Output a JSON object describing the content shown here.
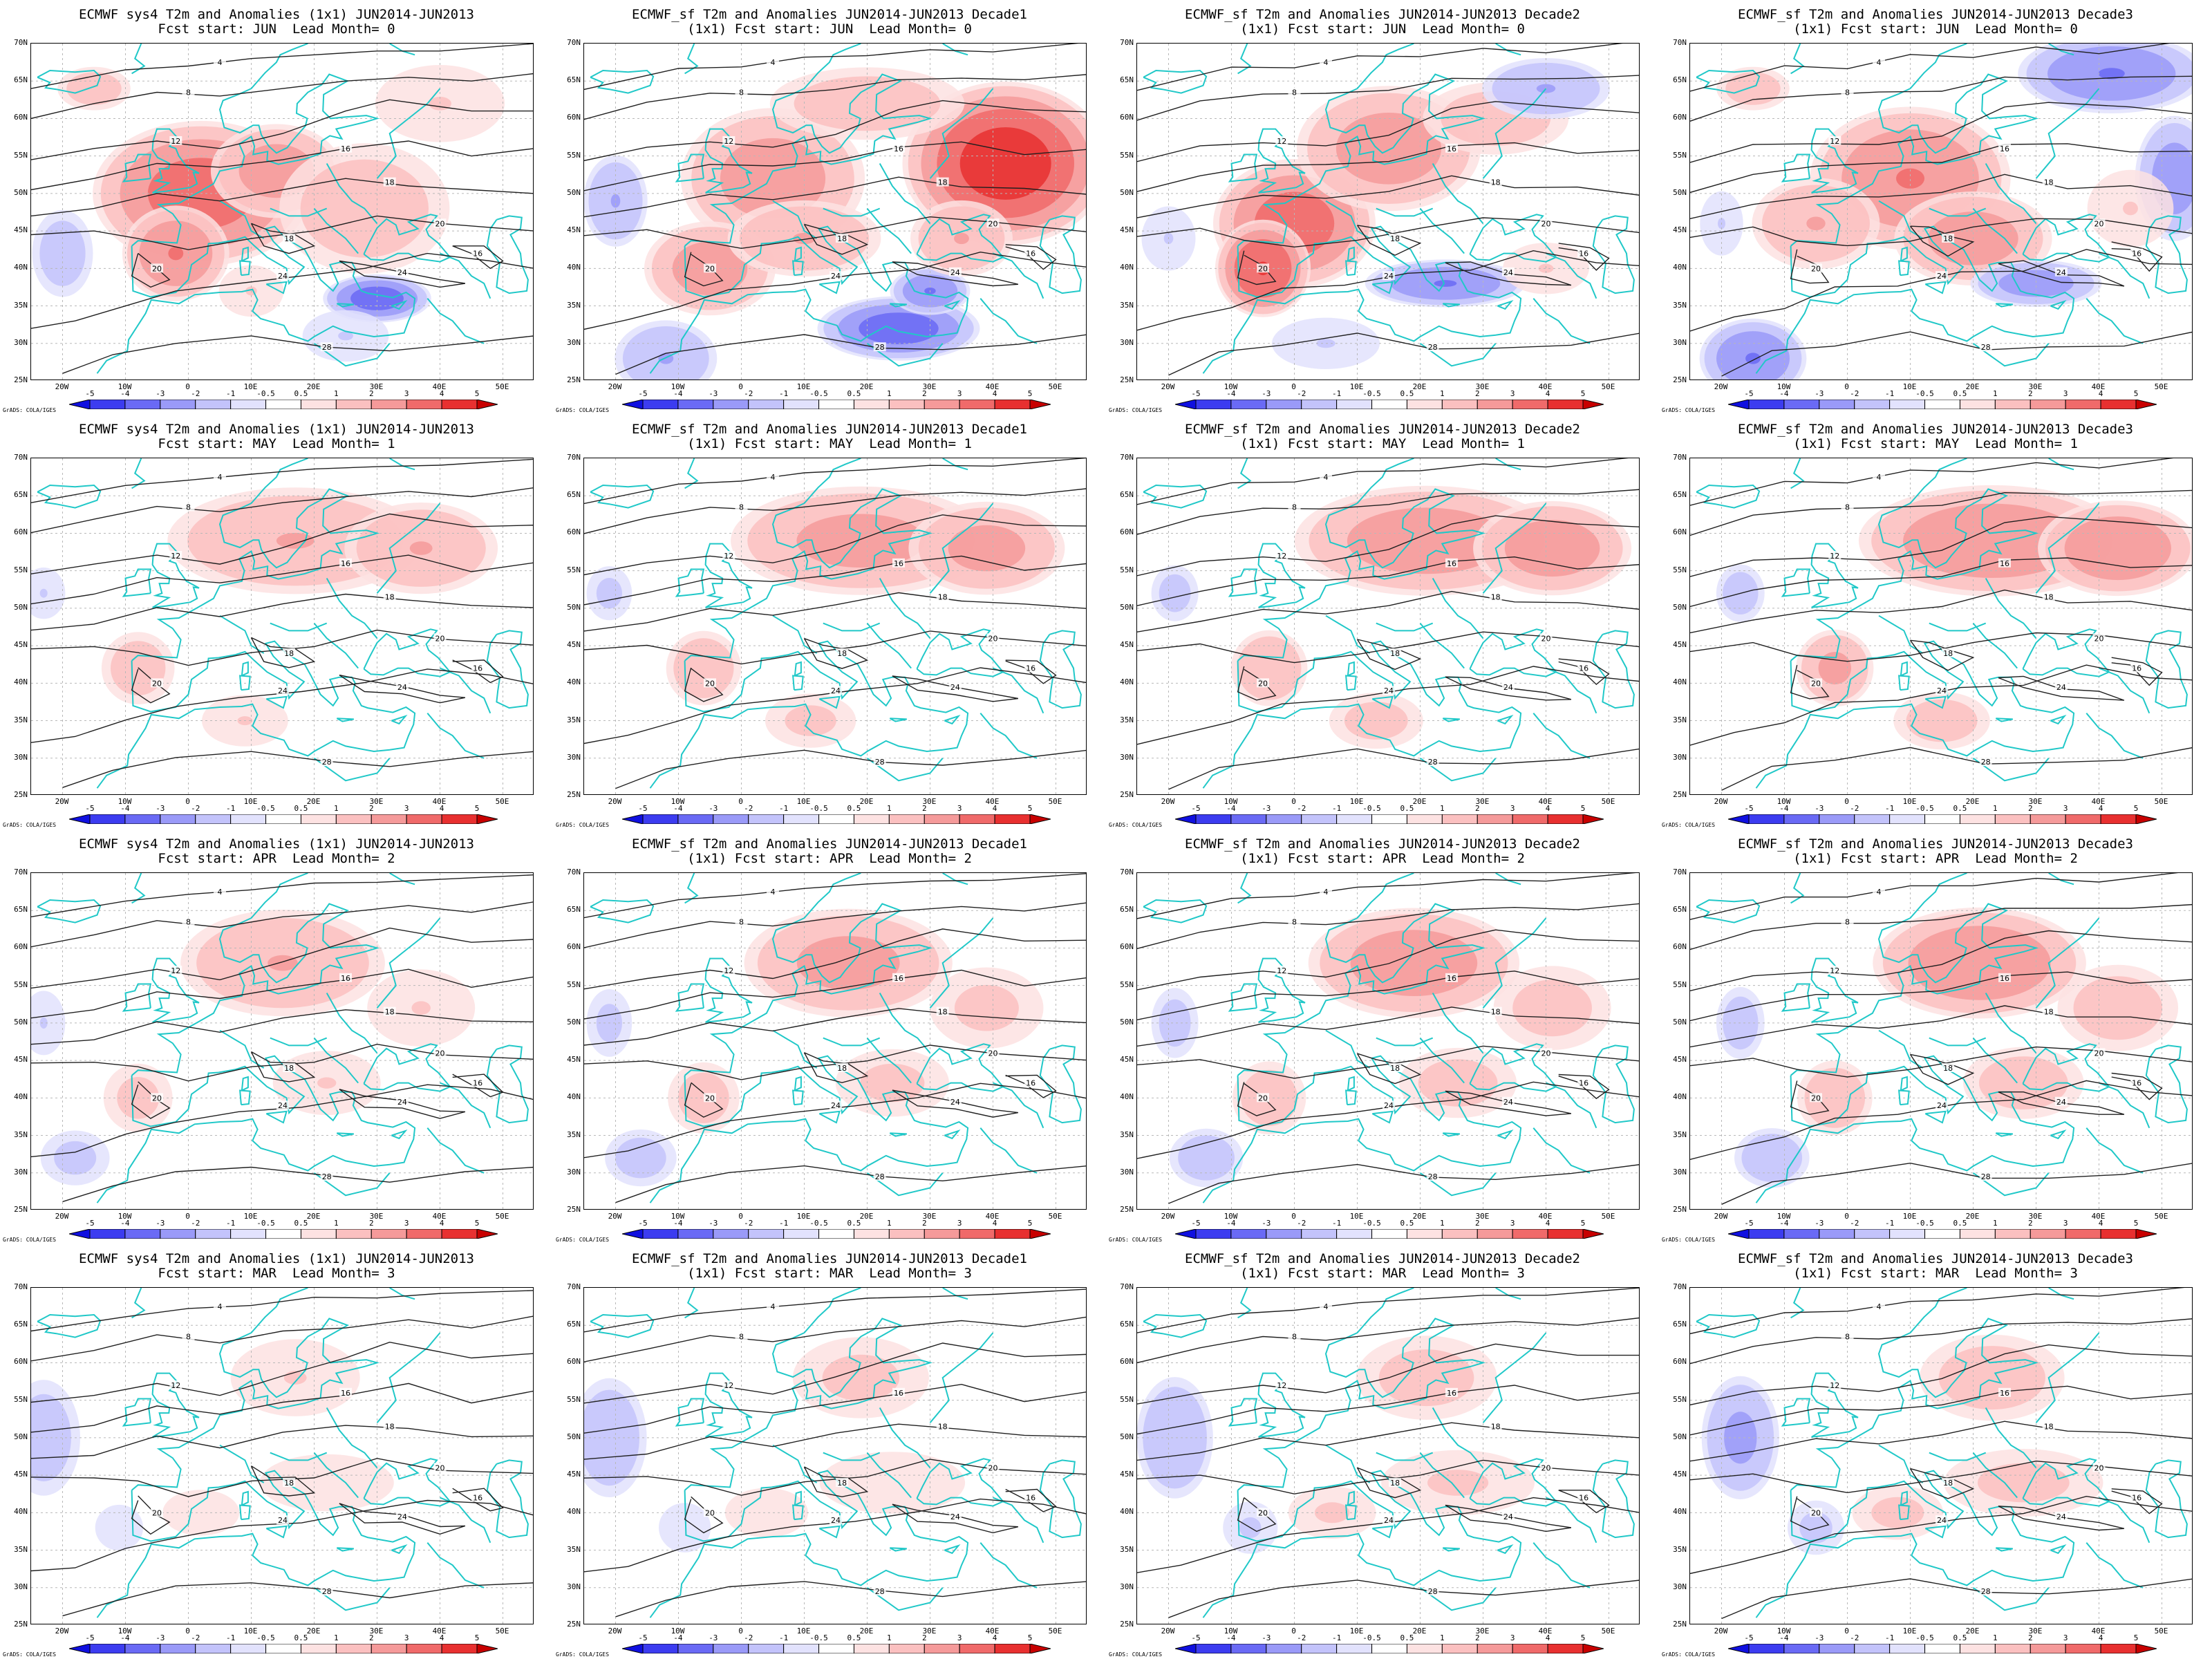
{
  "rows": [
    {
      "titles2": [
        "Fcst start: JUN  Lead Month= 0",
        "(1x1) Fcst start: JUN  Lead Month= 0",
        "(1x1) Fcst start: JUN  Lead Month= 0",
        "(1x1) Fcst start: JUN  Lead Month= 0"
      ],
      "strength": 1.0
    },
    {
      "titles2": [
        "Fcst start: MAY  Lead Month= 1",
        "(1x1) Fcst start: MAY  Lead Month= 1",
        "(1x1) Fcst start: MAY  Lead Month= 1",
        "(1x1) Fcst start: MAY  Lead Month= 1"
      ],
      "strength": 0.55
    },
    {
      "titles2": [
        "Fcst start: APR  Lead Month= 2",
        "(1x1) Fcst start: APR  Lead Month= 2",
        "(1x1) Fcst start: APR  Lead Month= 2",
        "(1x1) Fcst start: APR  Lead Month= 2"
      ],
      "strength": 0.45
    },
    {
      "titles2": [
        "Fcst start: MAR  Lead Month= 3",
        "(1x1) Fcst start: MAR  Lead Month= 3",
        "(1x1) Fcst start: MAR  Lead Month= 3",
        "(1x1) Fcst start: MAR  Lead Month= 3"
      ],
      "strength": 0.3
    }
  ],
  "titles1": [
    "ECMWF sys4 T2m and Anomalies (1x1) JUN2014-JUN2013",
    "ECMWF_sf T2m and Anomalies JUN2014-JUN2013 Decade1",
    "ECMWF_sf T2m and Anomalies JUN2014-JUN2013 Decade2",
    "ECMWF_sf T2m and Anomalies JUN2014-JUN2013 Decade3"
  ],
  "lat_labels": [
    "70N",
    "65N",
    "60N",
    "55N",
    "50N",
    "45N",
    "40N",
    "35N",
    "30N",
    "25N"
  ],
  "lon_labels": [
    "20W",
    "10W",
    "0",
    "10E",
    "20E",
    "30E",
    "40E",
    "50E"
  ],
  "credit": "GrADS: COLA/IGES",
  "colorbar_labels": [
    "-5",
    "-4",
    "-3",
    "-2",
    "-1",
    "-0.5",
    "0.5",
    "1",
    "2",
    "3",
    "4",
    "5"
  ],
  "colorbar_colors": [
    "#1010e0",
    "#3c3cf0",
    "#6a6af5",
    "#9a9af8",
    "#c3c3fb",
    "#e2e2fd",
    "#ffffff",
    "#fde2e2",
    "#fbc0c0",
    "#f59a9a",
    "#f06a6a",
    "#e83030",
    "#c80000"
  ],
  "contour_labels": [
    "4",
    "8",
    "12",
    "16",
    "18",
    "20",
    "24",
    "28"
  ],
  "colors": {
    "coast": "#20c8c8",
    "contour": "#202020",
    "grid": "#b8b8b8"
  }
}
